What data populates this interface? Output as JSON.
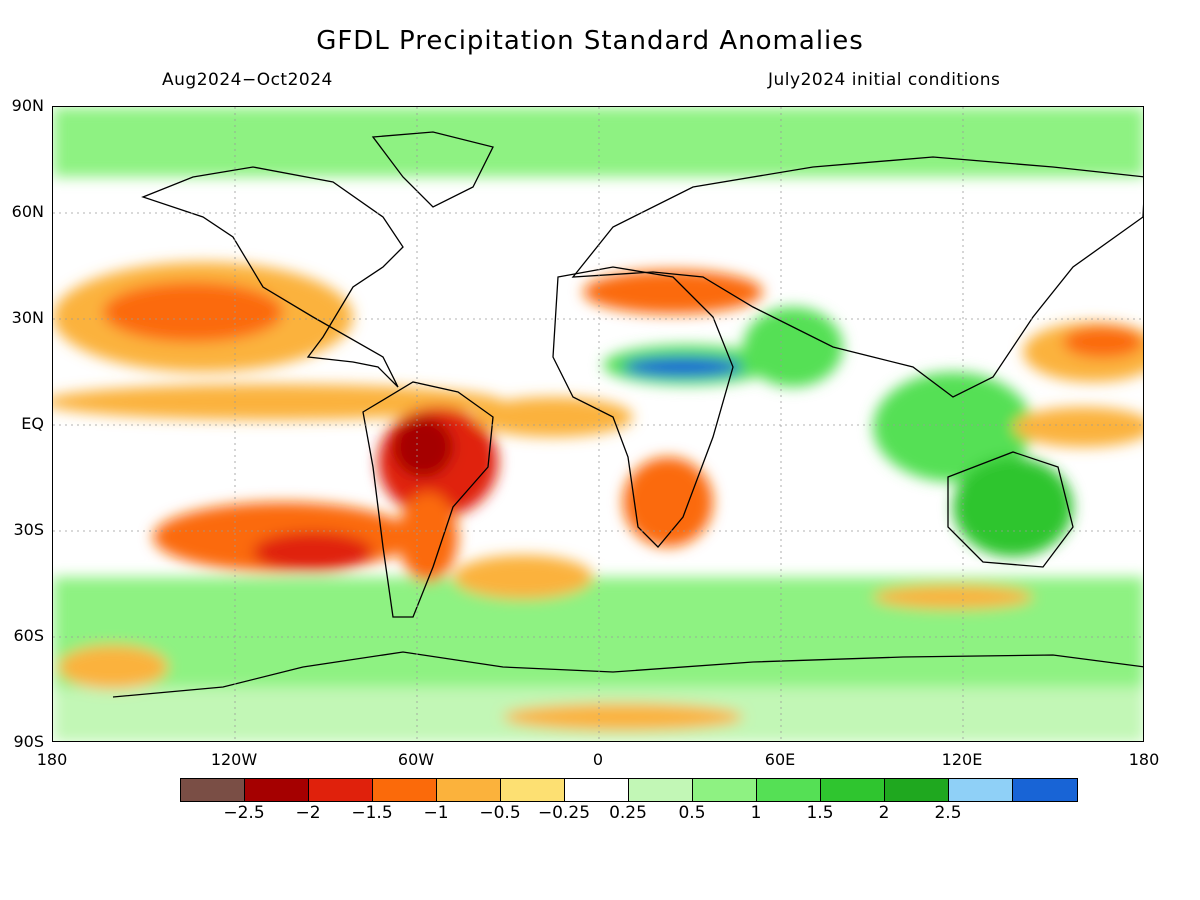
{
  "header": {
    "title": "GFDL Precipitation Standard Anomalies",
    "period": "Aug2024−Oct2024",
    "init": "July2024 initial conditions"
  },
  "axes": {
    "lat_labels": [
      "90N",
      "60N",
      "30N",
      "EQ",
      "30S",
      "60S",
      "90S"
    ],
    "lon_labels": [
      "180",
      "120W",
      "60W",
      "0",
      "60E",
      "120E",
      "180"
    ]
  },
  "colorbar": {
    "colors": [
      "#7a4e45",
      "#a50000",
      "#e0210c",
      "#fb6a0a",
      "#fbb23c",
      "#fde072",
      "#ffffff",
      "#c2f7b6",
      "#8ef282",
      "#55e055",
      "#2fc52f",
      "#1fa81f",
      "#8fd0f7",
      "#1864d6"
    ],
    "labels": [
      "−2.5",
      "−2",
      "−1.5",
      "−1",
      "−0.5",
      "−0.25",
      "0.25",
      "0.5",
      "1",
      "1.5",
      "2",
      "2.5"
    ]
  },
  "map": {
    "background_color": "#ffffff",
    "coastline_color": "#000000",
    "anomaly_regions": [
      {
        "name": "NE Pacific dry",
        "level": -1,
        "color": "#fb6a0a"
      },
      {
        "name": "Equatorial Pacific dry",
        "level": -0.5,
        "color": "#fbb23c"
      },
      {
        "name": "SE Pacific dry",
        "level": -1.5,
        "color": "#e0210c"
      },
      {
        "name": "Amazon dry",
        "level": -2,
        "color": "#a50000"
      },
      {
        "name": "Brazil dry",
        "level": -1,
        "color": "#fb6a0a"
      },
      {
        "name": "Sahel wet",
        "level": 2.5,
        "color": "#1864d6"
      },
      {
        "name": "Southern Africa dry",
        "level": -1,
        "color": "#fb6a0a"
      },
      {
        "name": "Mediterranean dry",
        "level": -1,
        "color": "#fb6a0a"
      },
      {
        "name": "Maritime Continent wet",
        "level": 1.5,
        "color": "#2fc52f"
      },
      {
        "name": "Australia wet",
        "level": 1.5,
        "color": "#2fc52f"
      },
      {
        "name": "Southern Ocean wet",
        "level": 1,
        "color": "#55e055"
      },
      {
        "name": "West Pacific dry",
        "level": -1,
        "color": "#fb6a0a"
      }
    ]
  }
}
